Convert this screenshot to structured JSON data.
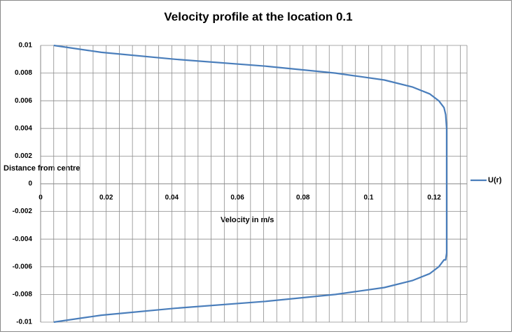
{
  "chart_data": {
    "type": "line",
    "title": "Velocity profile at the location 0.1",
    "x_label": "Velocity  in m/s",
    "y_label": "Distance from centre",
    "xlim": [
      0,
      0.13
    ],
    "ylim": [
      -0.01,
      0.01
    ],
    "xticks": [
      0,
      0.02,
      0.04,
      0.06,
      0.08,
      0.1,
      0.12
    ],
    "xminor_ticks": [
      0.004,
      0.008,
      0.012,
      0.016,
      0.024,
      0.028,
      0.032,
      0.036,
      0.044,
      0.048,
      0.052,
      0.056,
      0.064,
      0.068,
      0.072,
      0.076,
      0.084,
      0.088,
      0.092,
      0.096,
      0.104,
      0.108,
      0.112,
      0.116,
      0.124,
      0.128
    ],
    "yticks": [
      0.01,
      0.008,
      0.006,
      0.004,
      0.002,
      0,
      -0.002,
      -0.004,
      -0.006,
      -0.008,
      -0.01
    ],
    "grid": true,
    "legend": "right",
    "series": [
      {
        "name": "U(r)",
        "color": "#4a7ebb",
        "x": [
          0.004,
          0.0185,
          0.041,
          0.0686,
          0.0899,
          0.1048,
          0.1133,
          0.1186,
          0.1214,
          0.123,
          0.1235,
          0.1238,
          0.1238,
          0.1238,
          0.1238,
          0.1238,
          0.1238,
          0.1238,
          0.1238,
          0.1238,
          0.1238,
          0.1235,
          0.123,
          0.1214,
          0.1186,
          0.1133,
          0.1048,
          0.0899,
          0.0686,
          0.041,
          0.0185,
          0.004
        ],
        "values": [
          0.01,
          0.0095,
          0.009,
          0.0085,
          0.008,
          0.0075,
          0.007,
          0.0065,
          0.006,
          0.0055,
          0.005,
          0.004,
          0.003,
          0.002,
          0.001,
          0,
          -0.001,
          -0.002,
          -0.003,
          -0.004,
          -0.005,
          -0.0055,
          -0.0055,
          -0.006,
          -0.0065,
          -0.007,
          -0.0075,
          -0.008,
          -0.0085,
          -0.009,
          -0.0095,
          -0.01
        ]
      }
    ]
  }
}
